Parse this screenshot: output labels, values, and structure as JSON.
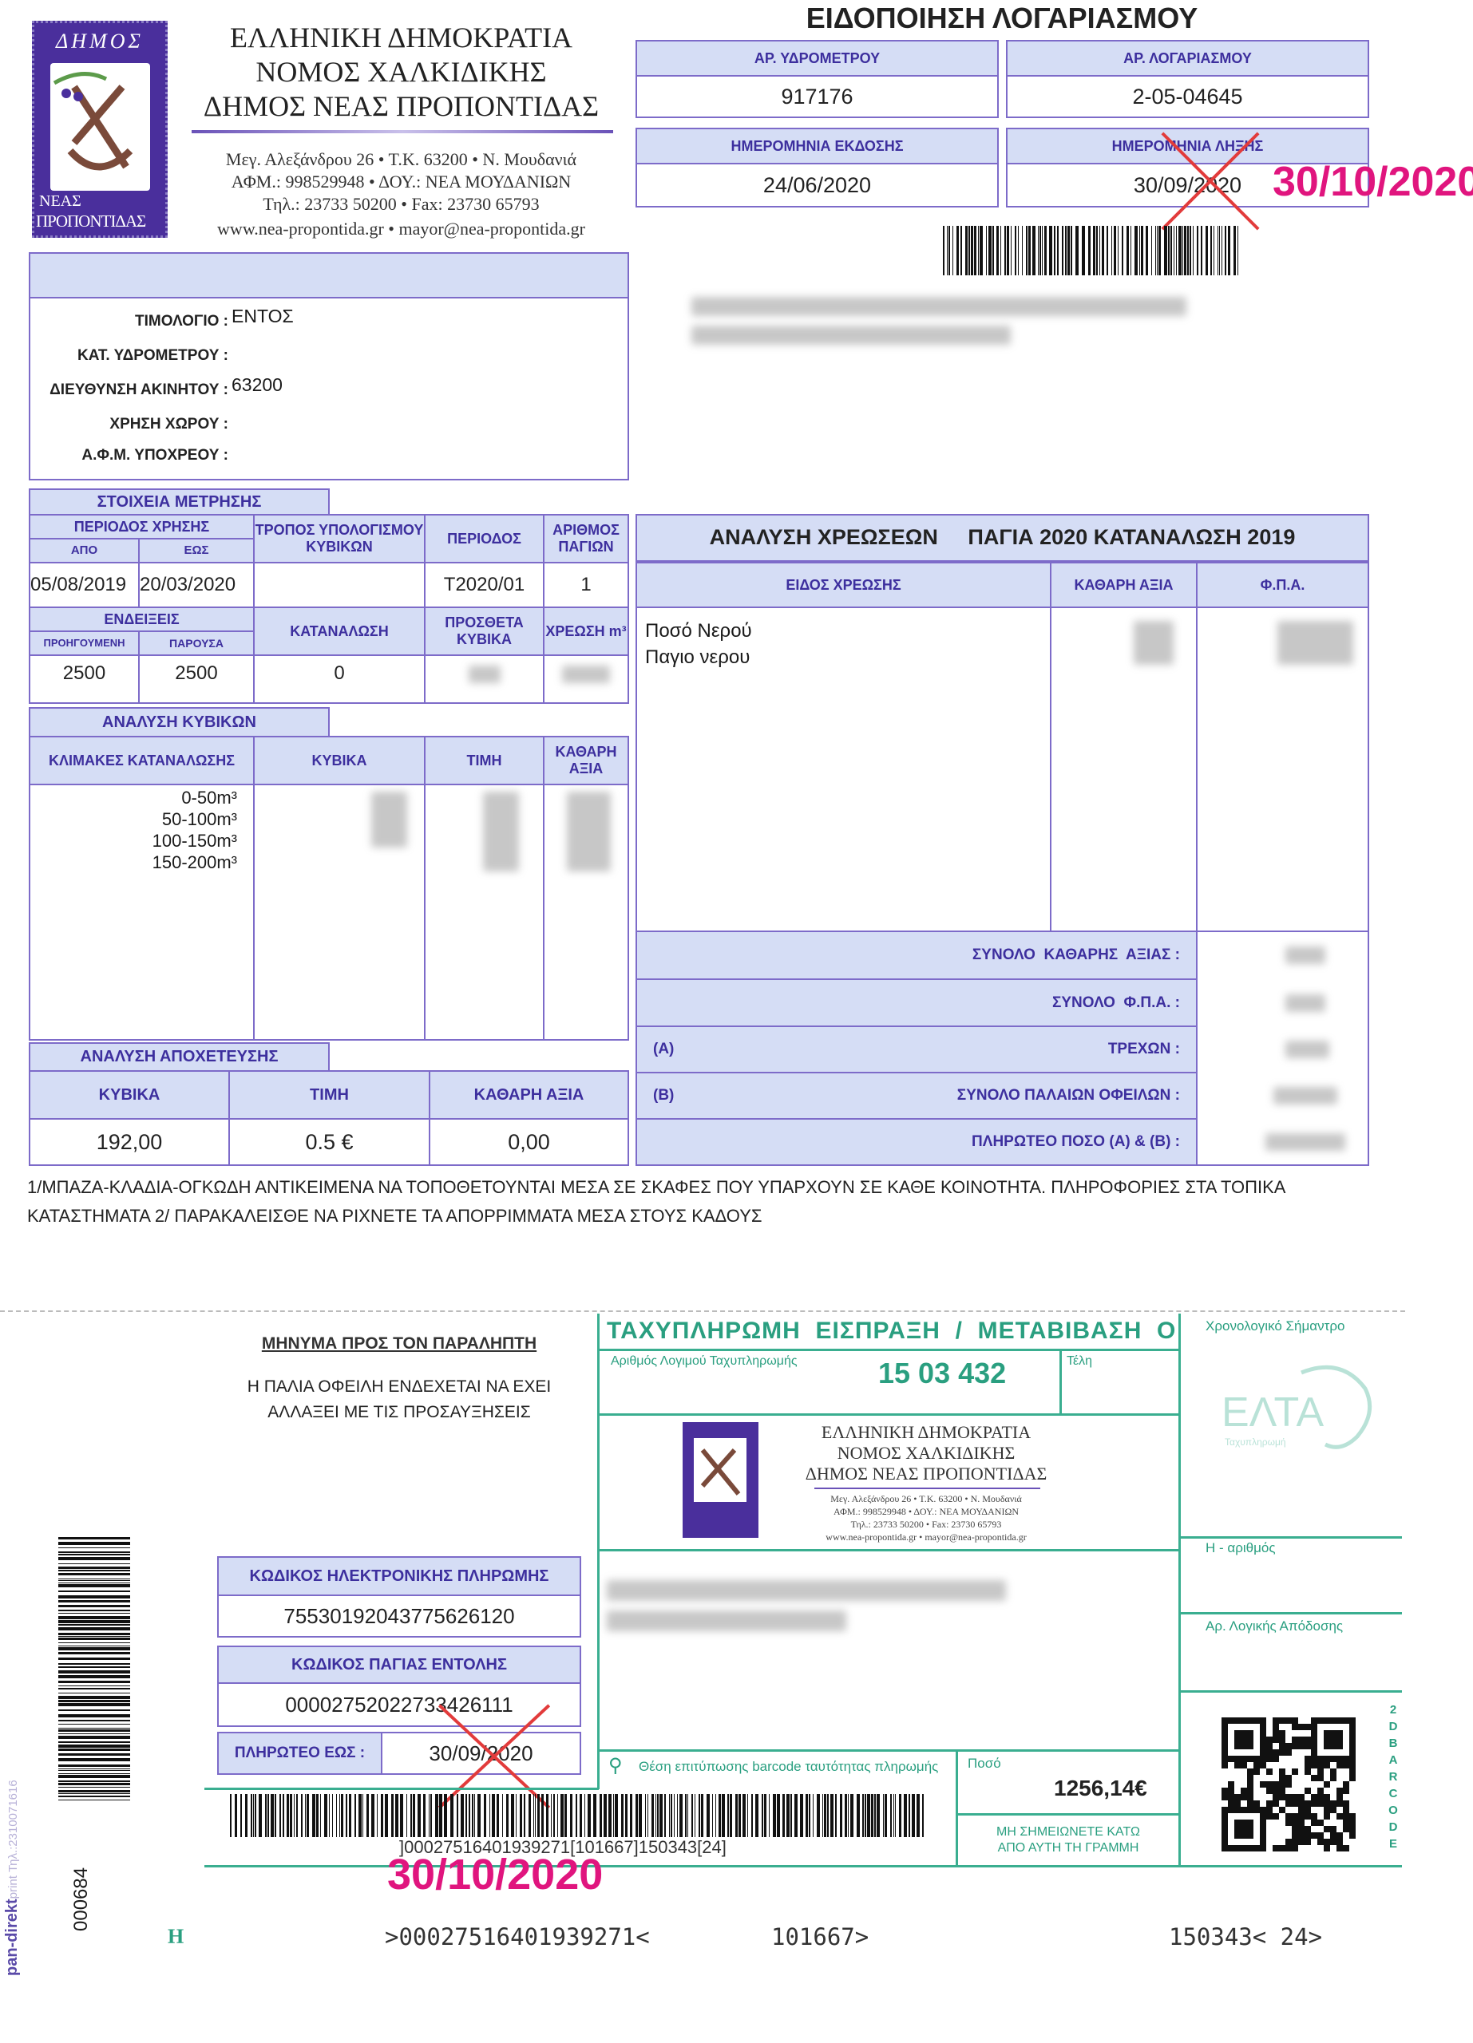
{
  "header": {
    "org_lines": [
      "ΕΛΛΗΝΙΚΗ ΔΗΜΟΚΡΑΤΙΑ",
      "ΝΟΜΟΣ ΧΑΛΚΙΔΙΚΗΣ",
      "ΔΗΜΟΣ ΝΕΑΣ ΠΡΟΠΟΝΤΙΔΑΣ"
    ],
    "address_lines": [
      "Μεγ. Αλεξάνδρου 26 • Τ.Κ. 63200 • Ν. Μουδανιά",
      "ΑΦΜ.: 998529948 • ΔΟΥ.: ΝΕΑ ΜΟΥΔΑΝΙΩΝ",
      "Τηλ.: 23733 50200 • Fax: 23730 65793",
      "www.nea-propontida.gr • mayor@nea-propontida.gr"
    ],
    "logo_text": {
      "top": "ΔΗΜΟΣ",
      "bottom1": "ΝΕΑΣ",
      "bottom2": "ΠΡΟΠΟΝΤΙΔΑΣ"
    },
    "title": "ΕΙΔΟΠΟΙΗΣΗ ΛΟΓΑΡΙΑΣΜΟΥ",
    "fields": [
      {
        "label": "ΑΡ. ΥΔΡΟΜΕΤΡΟΥ",
        "value": "917176"
      },
      {
        "label": "ΑΡ. ΛΟΓΑΡΙΑΣΜΟΥ",
        "value": "2-05-04645"
      },
      {
        "label": "ΗΜΕΡΟΜΗΝΙΑ ΕΚΔΟΣΗΣ",
        "value": "24/06/2020"
      },
      {
        "label": "ΗΜΕΡΟΜΗΝΙΑ ΛΗΞΗΣ",
        "value": "30/09/2020"
      }
    ],
    "new_due_date": "30/10/2020"
  },
  "info": {
    "rows": [
      {
        "label": "ΤΙΜΟΛΟΓΙΟ :",
        "value": "ΕΝΤΟΣ"
      },
      {
        "label": "ΚΑΤ. ΥΔΡΟΜΕΤΡΟΥ :",
        "value": ""
      },
      {
        "label": "ΔΙΕΥΘΥΝΣΗ ΑΚΙΝΗΤΟΥ :",
        "value": "63200"
      },
      {
        "label": "ΧΡΗΣΗ ΧΩΡΟΥ :",
        "value": ""
      },
      {
        "label": "Α.Φ.Μ. ΥΠΟΧΡΕΟΥ :",
        "value": ""
      }
    ]
  },
  "measurement": {
    "tab": "ΣΤΟΙΧΕΙΑ ΜΕΤΡΗΣΗΣ",
    "period_use": "ΠΕΡΙΟΔΟΣ ΧΡΗΣΗΣ",
    "from": "ΑΠΟ",
    "to": "ΕΩΣ",
    "calc_method": "ΤΡΟΠΟΣ ΥΠΟΛΟΓΙΣΜΟΥ ΚΥΒΙΚΩΝ",
    "period": "ΠΕΡΙΟΔΟΣ",
    "fixed_count": "ΑΡΙΘΜΟΣ ΠΑΓΙΩΝ",
    "from_value": "05/08/2019",
    "to_value": "20/03/2020",
    "calc_value": "",
    "period_value": "T2020/01",
    "fixed_value": "1",
    "readings": "ΕΝΔΕΙΞΕΙΣ",
    "previous": "ΠΡΟΗΓΟΥΜΕΝΗ",
    "current": "ΠΑΡΟΥΣΑ",
    "consumption": "ΚΑΤΑΝΑΛΩΣΗ",
    "extra": "ΠΡΟΣΘΕΤΑ ΚΥΒΙΚΑ",
    "charge": "ΧΡΕΩΣΗ m³",
    "previous_value": "2500",
    "current_value": "2500",
    "consumption_value": "0"
  },
  "cubic": {
    "tab": "ΑΝΑΛΥΣΗ ΚΥΒΙΚΩΝ",
    "headers": [
      "ΚΛΙΜΑΚΕΣ ΚΑΤΑΝΑΛΩΣΗΣ",
      "ΚΥΒΙΚΑ",
      "ΤΙΜΗ",
      "ΚΑΘΑΡΗ ΑΞΙΑ"
    ],
    "tiers": [
      "0-50m³",
      "50-100m³",
      "100-150m³",
      "150-200m³"
    ]
  },
  "sewage": {
    "tab": "ΑΝΑΛΥΣΗ ΑΠΟΧΕΤΕΥΣΗΣ",
    "headers": [
      "ΚΥΒΙΚΑ",
      "ΤΙΜΗ",
      "ΚΑΘΑΡΗ ΑΞΙΑ"
    ],
    "values": [
      "192,00",
      "0.5 €",
      "0,00"
    ]
  },
  "charges": {
    "title": "ΑΝΑΛΥΣΗ ΧΡΕΩΣΕΩΝ     ΠΑΓΙΑ 2020 ΚΑΤΑΝΑΛΩΣΗ 2019",
    "headers": [
      "ΕΙΔΟΣ ΧΡΕΩΣΗΣ",
      "ΚΑΘΑΡΗ ΑΞΙΑ",
      "Φ.Π.Α."
    ],
    "items": [
      "Ποσό Νερού",
      "Παγιο νερου"
    ],
    "totals": [
      {
        "prefix": "",
        "label": "ΣΥΝΟΛΟ  ΚΑΘΑΡΗΣ  ΑΞΙΑΣ :"
      },
      {
        "prefix": "",
        "label": "ΣΥΝΟΛΟ  Φ.Π.Α. :"
      },
      {
        "prefix": "(Α)",
        "label": "ΤΡΕΧΩΝ :"
      },
      {
        "prefix": "(Β)",
        "label": "ΣΥΝΟΛΟ ΠΑΛΑΙΩΝ ΟΦΕΙΛΩΝ :"
      },
      {
        "prefix": "",
        "label": "ΠΛΗΡΩΤΕΟ ΠΟΣΟ (Α) & (Β) :"
      }
    ]
  },
  "notice": [
    "1/ΜΠΑΖΑ-ΚΛΑΔΙΑ-ΟΓΚΩΔΗ ΑΝΤΙΚΕΙΜΕΝΑ ΝΑ ΤΟΠΟΘΕΤΟΥΝΤΑΙ ΜΕΣΑ ΣΕ ΣΚΑΦΕΣ ΠΟΥ ΥΠΑΡΧΟΥΝ ΣΕ ΚΑΘΕ ΚΟΙΝΟΤΗΤΑ.  ΠΛΗΡΟΦΟΡΙΕΣ ΣΤΑ ΤΟΠΙΚΑ",
    "ΚΑΤΑΣΤΗΜΑΤΑ 2/ ΠΑΡΑΚΑΛΕΙΣΘΕ ΝΑ ΡΙΧΝΕΤΕ ΤΑ ΑΠΟΡΡΙΜΜΑΤΑ ΜΕΣΑ ΣΤΟΥΣ ΚΑΔΟΥΣ"
  ],
  "slip": {
    "message_title": "ΜΗΝΥΜΑ ΠΡΟΣ ΤΟΝ ΠΑΡΑΛΗΠΤΗ",
    "message_lines": [
      "Η ΠΑΛΙΑ ΟΦΕΙΛΗ ΕΝΔΕΧΕΤΑΙ ΝΑ ΕΧΕΙ",
      "ΑΛΛΑΞΕΙ ΜΕ ΤΙΣ ΠΡΟΣΑΥΞΗΣΕΙΣ"
    ],
    "epay_label": "ΚΩΔΙΚΟΣ ΗΛΕΚΤΡΟΝΙΚΗΣ ΠΛΗΡΩΜΗΣ",
    "epay_value": "75530192043775626120",
    "standing_label": "ΚΩΔΙΚΟΣ ΠΑΓΙΑΣ ΕΝΤΟΛΗΣ",
    "standing_value": "00002752022733426111",
    "due_label": "ΠΛΗΡΩΤΕΟ ΕΩΣ :",
    "due_value": "30/09/2020",
    "new_due_date": "30/10/2020",
    "serial": "000684",
    "printer": "pan-direkt",
    "printer_suffix": "print Τηλ.:2310071616",
    "h_mark": "Η",
    "barcode_text": "]00027516401939271[101667]150343[24]",
    "ocr": [
      ">00027516401939271<",
      "101667>",
      "150343< 24>"
    ]
  },
  "postal": {
    "title": "ΤΑΧΥΠΛΗΡΩΜΗ  ΕΙΣΠΡΑΞΗ  /  ΜΕΤΑΒΙΒΑΣΗ  Ο",
    "account_label": "Αριθμός Λογιμού Ταχυπληρωμής",
    "account_value": "15 03 432",
    "fees_label": "Τέλη",
    "barcode_position": "Θέση επιτύπωσης barcode ταυτότητας πληρωμής",
    "amount_label": "Ποσό",
    "amount_value": "1256,14€",
    "no_write": [
      "ΜΗ ΣΗΜΕΙΩΝΕΤΕ ΚΑΤΩ",
      "ΑΠΟ ΑΥΤΗ ΤΗ ΓΡΑΜΜΗ"
    ],
    "postmark_label": "Χρονολογικό  Σήμαντρο",
    "elta": "ΕΛΤΑ",
    "elta_sub": "Ταχυπληρωμή",
    "h_number": "Η - αριθμός",
    "logic_label": "Αρ. Λογικής Απόδοσης",
    "barcode_2d": "2D BARCODE"
  },
  "colors": {
    "purple": "#7d6bc9",
    "label_bg": "#d5ddf5",
    "green": "#3aae90",
    "magenta": "#e0157e",
    "cross": "#e23b3b"
  }
}
